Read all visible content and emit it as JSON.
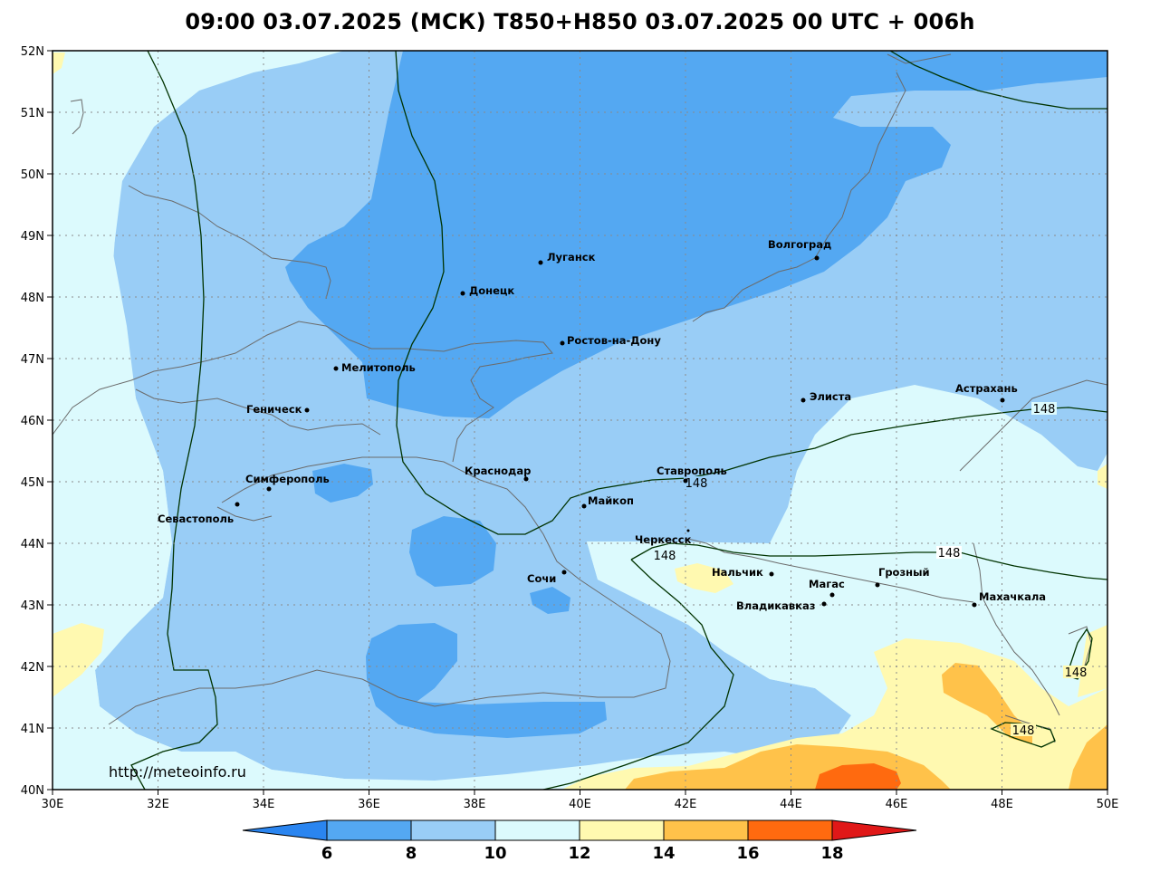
{
  "title": "09:00 03.07.2025 (МСК) T850+H850 03.07.2025 00 UTC + 006h",
  "watermark": "http://meteoinfo.ru",
  "axes": {
    "lat_labels": [
      "52N",
      "51N",
      "50N",
      "49N",
      "48N",
      "47N",
      "46N",
      "45N",
      "44N",
      "43N",
      "42N",
      "41N",
      "40N"
    ],
    "lon_labels": [
      "30E",
      "32E",
      "34E",
      "36E",
      "38E",
      "40E",
      "42E",
      "44E",
      "46E",
      "48E",
      "50E"
    ]
  },
  "colorbar": {
    "labels": [
      "6",
      "8",
      "10",
      "12",
      "14",
      "16",
      "18"
    ],
    "colors": [
      "#2a85f0",
      "#54a8f2",
      "#99cdf6",
      "#dcfafd",
      "#fff9b0",
      "#ffc24a",
      "#ff6a0f",
      "#e01818"
    ]
  },
  "colors": {
    "c6_8": "#54a8f2",
    "c8_10": "#99cdf6",
    "c10_12": "#dcfafd",
    "c12_14": "#fff9b0",
    "c14_16": "#ffc24a",
    "c16_18": "#ff6a0f",
    "contour": "#003300",
    "coast": "#6b6b6b"
  },
  "cities": [
    {
      "name": "Луганск",
      "key": "lugansk"
    },
    {
      "name": "Волгоград",
      "key": "volgograd"
    },
    {
      "name": "Донецк",
      "key": "donetsk"
    },
    {
      "name": "Ростов-на-Дону",
      "key": "rostov"
    },
    {
      "name": "Мелитополь",
      "key": "melitopol"
    },
    {
      "name": "Элиста",
      "key": "elista"
    },
    {
      "name": "Астрахань",
      "key": "astrakhan"
    },
    {
      "name": "Геническ",
      "key": "genichesk"
    },
    {
      "name": "Краснодар",
      "key": "krasnodar"
    },
    {
      "name": "Ставрополь",
      "key": "stavropol"
    },
    {
      "name": "Симферополь",
      "key": "simferopol"
    },
    {
      "name": "Майкоп",
      "key": "maikop"
    },
    {
      "name": "Севастополь",
      "key": "sevastopol"
    },
    {
      "name": "Черкесск",
      "key": "cherkessk"
    },
    {
      "name": "Нальчик",
      "key": "nalchik"
    },
    {
      "name": "Грозный",
      "key": "grozny"
    },
    {
      "name": "Магас",
      "key": "magas"
    },
    {
      "name": "Сочи",
      "key": "sochi"
    },
    {
      "name": "Владикавказ",
      "key": "vladikavkaz"
    },
    {
      "name": "Махачкала",
      "key": "makhachkala"
    }
  ],
  "contour_labels": [
    "148",
    "148",
    "148",
    "148",
    "148",
    "148"
  ]
}
